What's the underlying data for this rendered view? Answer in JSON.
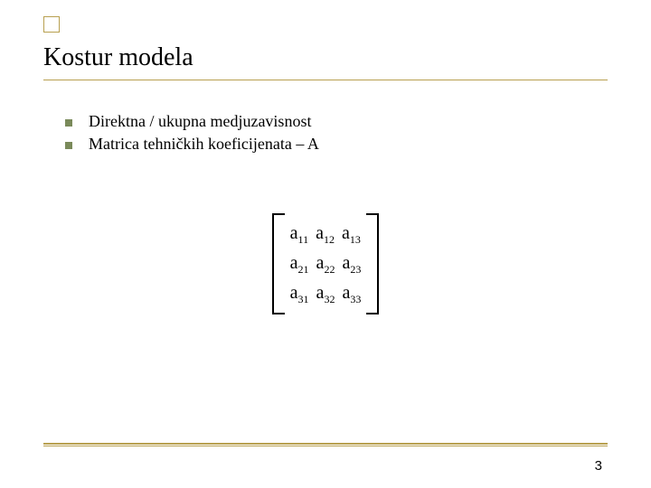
{
  "accent_color": "#b8a050",
  "bullet_color": "#7a8a5a",
  "title": "Kostur modela",
  "bullets": [
    "Direktna / ukupna medjuzavisnost",
    "Matrica tehničkih koeficijenata – A"
  ],
  "matrix": {
    "symbol": "a",
    "rows": 3,
    "cols": 3,
    "subscripts": [
      [
        "11",
        "12",
        "13"
      ],
      [
        "21",
        "22",
        "23"
      ],
      [
        "31",
        "32",
        "33"
      ]
    ]
  },
  "page_number": "3"
}
